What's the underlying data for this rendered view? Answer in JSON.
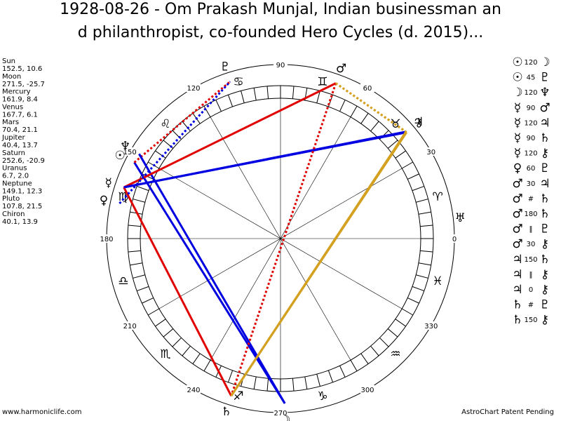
{
  "header": {
    "title_lines": [
      "1928-08-26 - Om Prakash Munjal, Indian businessman an",
      "d philanthropist, co-founded Hero Cycles (d. 2015)..."
    ]
  },
  "bodies": [
    {
      "name": "Sun",
      "glyph": "☉",
      "position": "152.5, 10.6"
    },
    {
      "name": "Moon",
      "glyph": "☽",
      "position": "271.5, -25.7"
    },
    {
      "name": "Mercury",
      "glyph": "☿",
      "position": "161.9, 8.4"
    },
    {
      "name": "Venus",
      "glyph": "♀",
      "position": "167.7, 6.1"
    },
    {
      "name": "Mars",
      "glyph": "♂",
      "position": "70.4, 21.1"
    },
    {
      "name": "Jupiter",
      "glyph": "♃",
      "position": "40.4, 13.7"
    },
    {
      "name": "Saturn",
      "glyph": "♄",
      "position": "252.6, -20.9"
    },
    {
      "name": "Uranus",
      "glyph": "♅",
      "position": "6.7, 2.0"
    },
    {
      "name": "Neptune",
      "glyph": "♆",
      "position": "149.1, 12.3"
    },
    {
      "name": "Pluto",
      "glyph": "♇",
      "position": "107.8, 21.5"
    },
    {
      "name": "Chiron",
      "glyph": "⚷",
      "position": "40.1, 13.9"
    }
  ],
  "aspects": [
    {
      "a": "☉",
      "aspect": "120",
      "b": "☽"
    },
    {
      "a": "☉",
      "aspect": "45",
      "b": "♇"
    },
    {
      "a": "☽",
      "aspect": "120",
      "b": "♆"
    },
    {
      "a": "☿",
      "aspect": "90",
      "b": "♂"
    },
    {
      "a": "☿",
      "aspect": "120",
      "b": "♃"
    },
    {
      "a": "☿",
      "aspect": "90",
      "b": "♄"
    },
    {
      "a": "☿",
      "aspect": "120",
      "b": "⚷"
    },
    {
      "a": "♀",
      "aspect": "60",
      "b": "♇"
    },
    {
      "a": "♂",
      "aspect": "30",
      "b": "♃"
    },
    {
      "a": "♂",
      "aspect": "#",
      "b": "♄"
    },
    {
      "a": "♂",
      "aspect": "180",
      "b": "♄"
    },
    {
      "a": "♂",
      "aspect": "‖",
      "b": "♇"
    },
    {
      "a": "♂",
      "aspect": "30",
      "b": "⚷"
    },
    {
      "a": "♃",
      "aspect": "150",
      "b": "♄"
    },
    {
      "a": "♃",
      "aspect": "‖",
      "b": "⚷"
    },
    {
      "a": "♃",
      "aspect": "0",
      "b": "⚷"
    },
    {
      "a": "♄",
      "aspect": "#",
      "b": "♇"
    },
    {
      "a": "♄",
      "aspect": "150",
      "b": "⚷"
    }
  ],
  "aspect_styles": {
    "120": {
      "color": "#0000e0",
      "dashed": false
    },
    "90": {
      "color": "#e00000",
      "dashed": false
    },
    "180": {
      "color": "#e00000",
      "dashed": true
    },
    "45": {
      "color": "#e00000",
      "dashed": true
    },
    "150": {
      "color": "#d4a020",
      "dashed": false
    },
    "30": {
      "color": "#d4a020",
      "dashed": true
    },
    "60": {
      "color": "#0000e0",
      "dashed": true
    }
  },
  "degree_labels": [
    0,
    30,
    60,
    90,
    120,
    150,
    180,
    210,
    240,
    270,
    300,
    330
  ],
  "signs": [
    "♈",
    "♉",
    "♊",
    "♋",
    "♌",
    "♍",
    "♎",
    "♏",
    "♐",
    "♑",
    "♒",
    "♓"
  ],
  "footer": {
    "left": "www.harmoniclife.com",
    "right": "AstroChart Patent Pending"
  }
}
